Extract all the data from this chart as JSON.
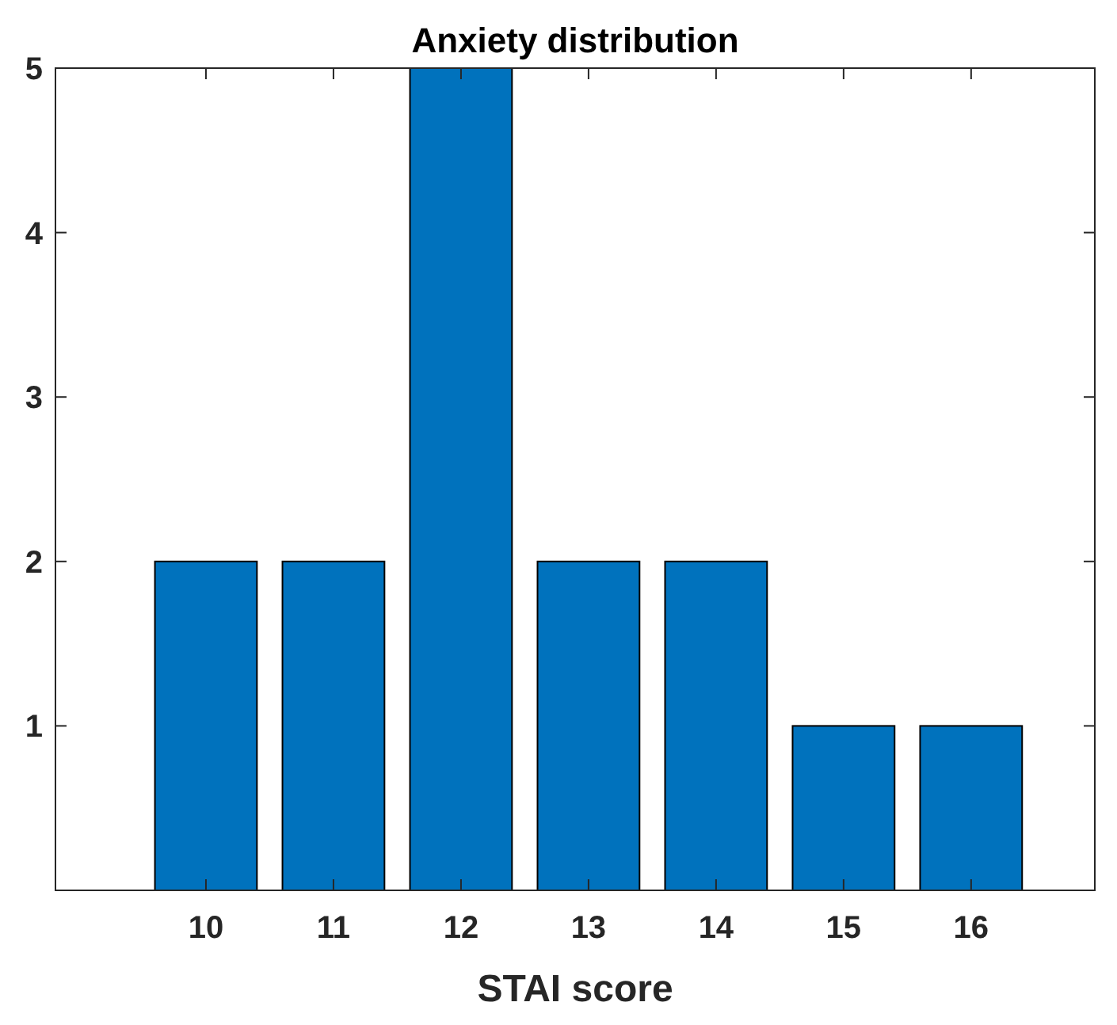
{
  "chart_data": {
    "type": "bar",
    "title": "Anxiety distribution",
    "xlabel": "STAI score",
    "categories": [
      "10",
      "11",
      "12",
      "13",
      "14",
      "15",
      "16"
    ],
    "values": [
      2,
      2,
      5,
      2,
      2,
      1,
      1
    ],
    "color": "#0072bd",
    "ylim": [
      0,
      5
    ],
    "yticks": [
      1,
      2,
      3,
      4,
      5
    ],
    "grid": false
  }
}
